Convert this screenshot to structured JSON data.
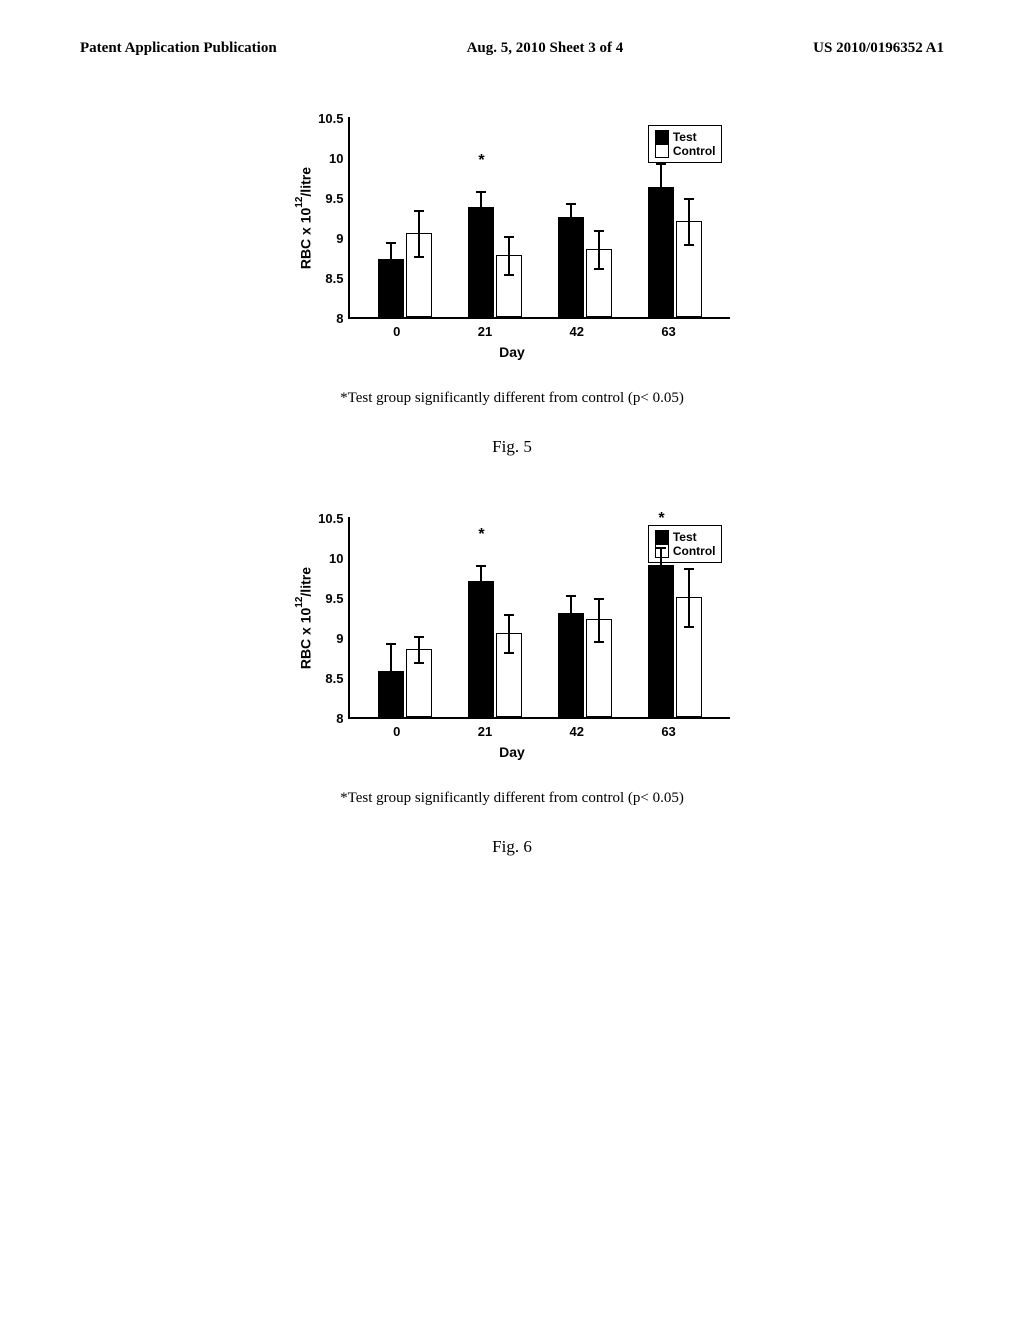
{
  "header": {
    "left": "Patent Application Publication",
    "center": "Aug. 5, 2010  Sheet 3 of 4",
    "right": "US 2010/0196352 A1"
  },
  "fig5": {
    "type": "bar",
    "ylabel": "RBC x 10¹²/litre",
    "xlabel": "Day",
    "ylim": [
      8,
      10.5
    ],
    "yticks": [
      "10.5",
      "10",
      "9.5",
      "9",
      "8.5",
      "8"
    ],
    "categories": [
      "0",
      "21",
      "42",
      "63"
    ],
    "test_values": [
      8.72,
      9.38,
      9.25,
      9.62
    ],
    "control_values": [
      9.05,
      8.78,
      8.85,
      9.2
    ],
    "test_errors": [
      0.22,
      0.2,
      0.18,
      0.3
    ],
    "control_errors": [
      0.3,
      0.25,
      0.25,
      0.3
    ],
    "sig_marks": [
      null,
      "*",
      null,
      "*"
    ],
    "bar_colors": {
      "test": "#000000",
      "control": "#ffffff"
    },
    "legend": {
      "test": "Test",
      "control": "Control"
    },
    "caption": "*Test group significantly different from control (p< 0.05)",
    "label": "Fig. 5"
  },
  "fig6": {
    "type": "bar",
    "ylabel": "RBC x 10¹²/litre",
    "xlabel": "Day",
    "ylim": [
      8,
      10.5
    ],
    "yticks": [
      "10.5",
      "10",
      "9.5",
      "9",
      "8.5",
      "8"
    ],
    "categories": [
      "0",
      "21",
      "42",
      "63"
    ],
    "test_values": [
      8.58,
      9.7,
      9.3,
      9.9
    ],
    "control_values": [
      8.85,
      9.05,
      9.22,
      9.5
    ],
    "test_errors": [
      0.35,
      0.2,
      0.22,
      0.22
    ],
    "control_errors": [
      0.18,
      0.25,
      0.28,
      0.38
    ],
    "sig_marks": [
      null,
      "*",
      null,
      "*"
    ],
    "bar_colors": {
      "test": "#000000",
      "control": "#ffffff"
    },
    "legend": {
      "test": "Test",
      "control": "Control"
    },
    "caption": "*Test group significantly different from control (p< 0.05)",
    "label": "Fig. 6"
  }
}
